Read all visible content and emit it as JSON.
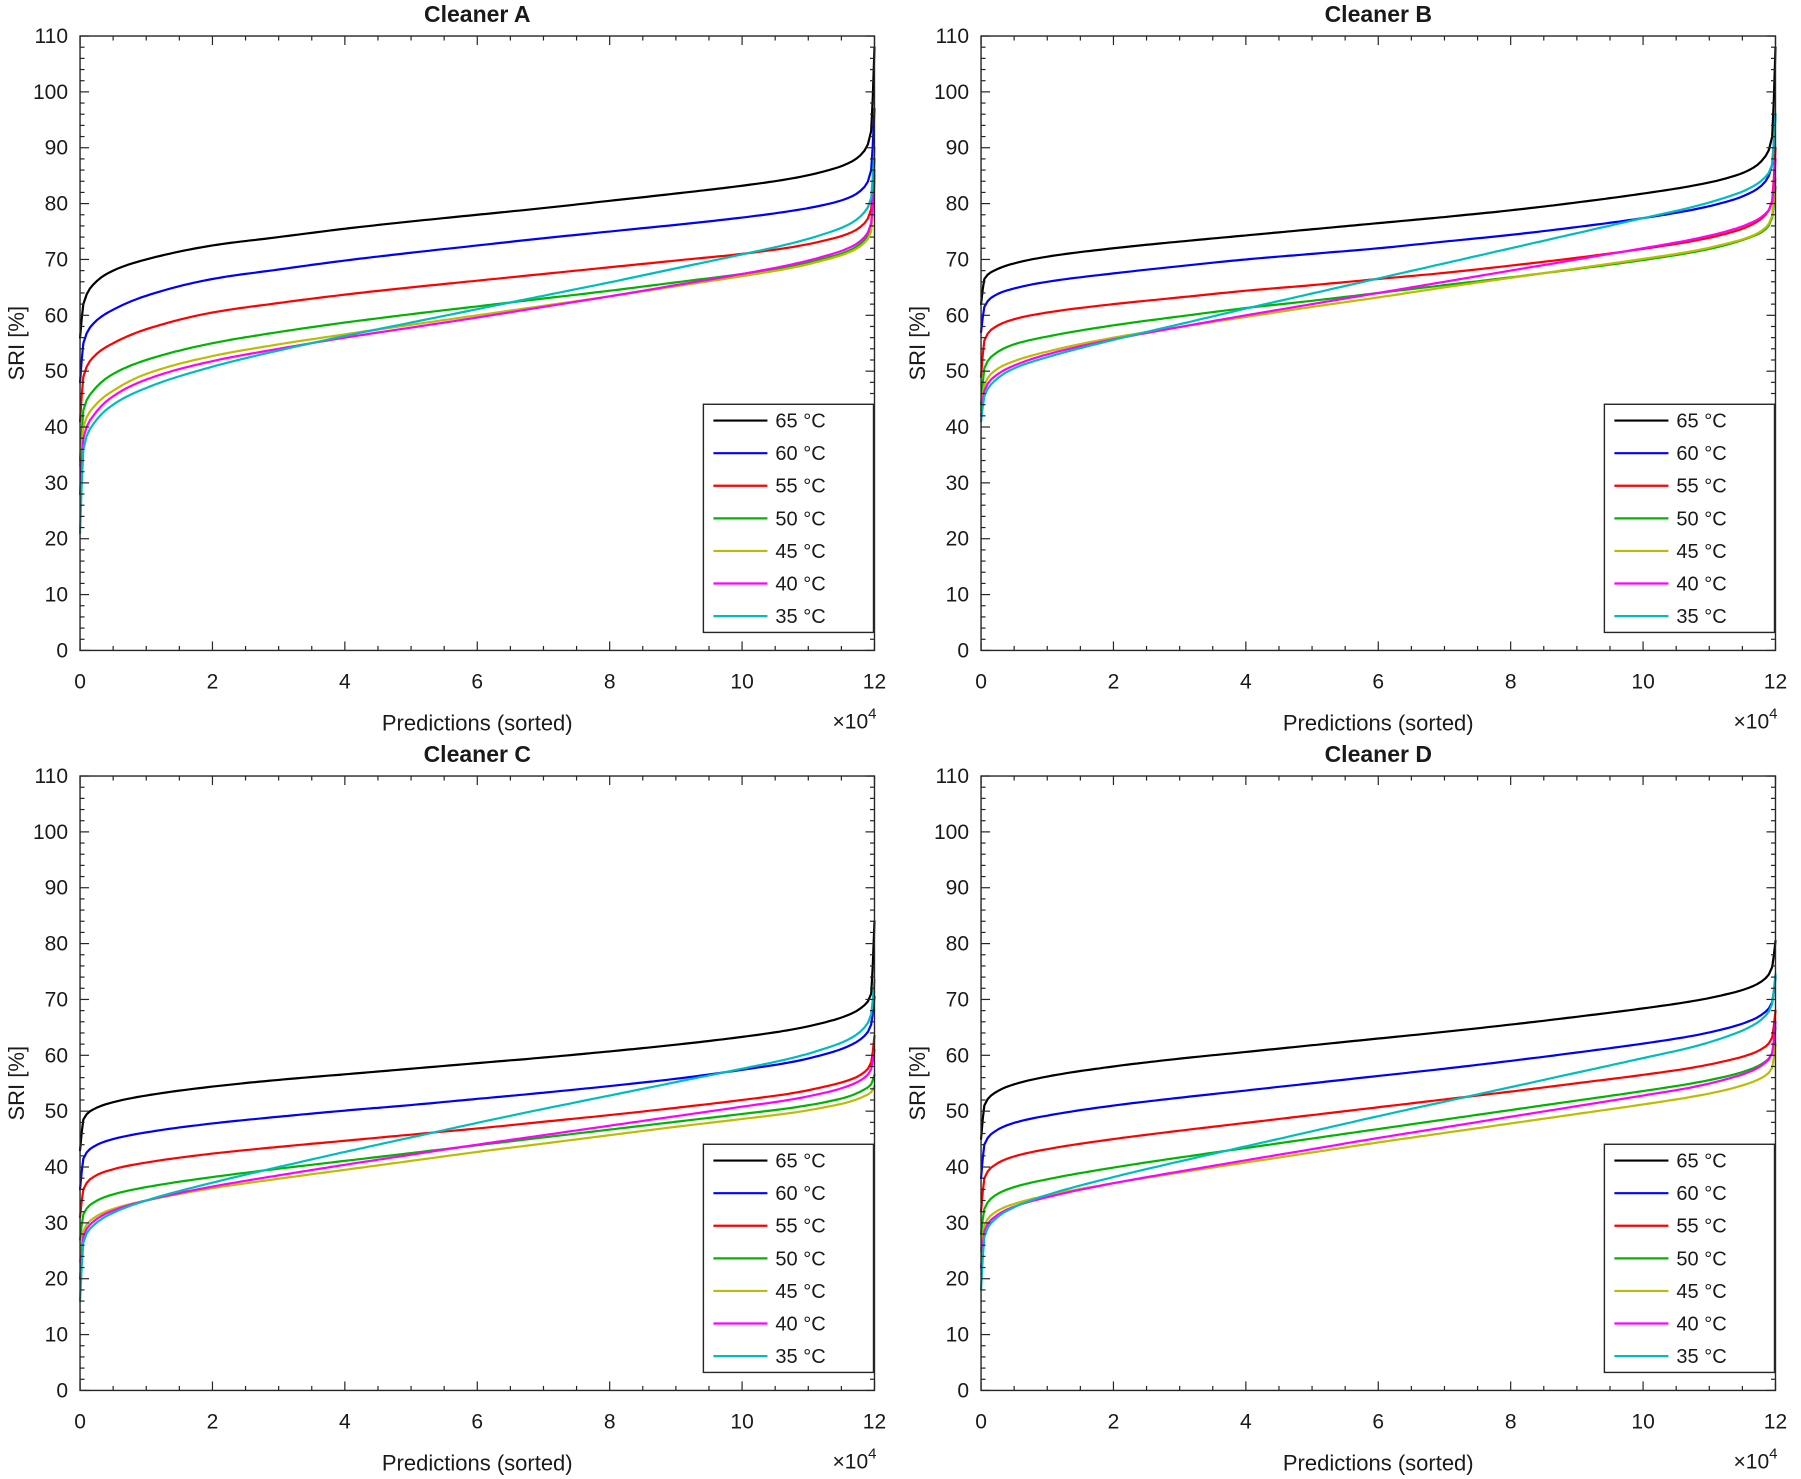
{
  "figure": {
    "background": "#ffffff",
    "axis_color": "#262626",
    "text_color": "#1a1a1a"
  },
  "chart_data": [
    {
      "type": "line",
      "title": "Cleaner A",
      "xlabel": "Predictions (sorted)",
      "ylabel": "SRI [%]",
      "x_exponent_label": "×10",
      "x_exponent_power": "4",
      "xlim": [
        0,
        12
      ],
      "ylim": [
        0,
        110
      ],
      "xticks": [
        0,
        2,
        4,
        6,
        8,
        10,
        12
      ],
      "yticks": [
        0,
        10,
        20,
        30,
        40,
        50,
        60,
        70,
        80,
        90,
        100,
        110
      ],
      "x_minor_step": 0.5,
      "y_minor_step": 2,
      "grid": false,
      "legend_position": "bottom-right",
      "x": [
        0,
        0.05,
        0.2,
        0.5,
        1,
        2,
        3,
        4,
        5,
        6,
        7,
        8,
        9,
        10,
        10.75,
        11.25,
        11.6,
        11.85,
        11.95,
        12
      ],
      "series": [
        {
          "name": "65 °C",
          "color": "#000000",
          "values": [
            56,
            62,
            65.5,
            68,
            70,
            72.5,
            74,
            75.5,
            76.8,
            78,
            79.2,
            80.5,
            81.8,
            83.2,
            84.5,
            85.8,
            87.2,
            89.5,
            93,
            108
          ]
        },
        {
          "name": "60 °C",
          "color": "#0000ff",
          "values": [
            48,
            55,
            58.5,
            61,
            63.5,
            66.5,
            68.2,
            69.8,
            71.2,
            72.5,
            73.8,
            75,
            76.2,
            77.5,
            78.7,
            79.8,
            81,
            83,
            86,
            97
          ]
        },
        {
          "name": "55 °C",
          "color": "#ff0000",
          "values": [
            41,
            49,
            52.5,
            55,
            57.5,
            60.5,
            62.2,
            63.7,
            65,
            66.2,
            67.4,
            68.6,
            69.8,
            71,
            72.2,
            73.4,
            74.6,
            76.5,
            79,
            88
          ]
        },
        {
          "name": "50 °C",
          "color": "#00b400",
          "values": [
            34,
            43,
            46.5,
            49.5,
            52,
            55,
            57,
            58.7,
            60.2,
            61.6,
            63,
            64.4,
            65.9,
            67.4,
            68.8,
            70.2,
            71.5,
            73.5,
            76,
            86
          ]
        },
        {
          "name": "45 °C",
          "color": "#bdbd00",
          "values": [
            33,
            40,
            43.5,
            46.5,
            49.5,
            52.7,
            54.8,
            56.6,
            58.3,
            60,
            61.7,
            63.4,
            65.2,
            67,
            68.5,
            69.9,
            71.2,
            73,
            75,
            84
          ]
        },
        {
          "name": "40 °C",
          "color": "#ff00ff",
          "values": [
            28,
            38,
            42,
            45.5,
            48.5,
            51.8,
            54,
            56,
            57.8,
            59.6,
            61.5,
            63.4,
            65.4,
            67.4,
            69.1,
            70.6,
            72,
            74,
            76.5,
            85
          ]
        },
        {
          "name": "35 °C",
          "color": "#00bdbd",
          "values": [
            21,
            36,
            40.5,
            44,
            47,
            50.8,
            53.7,
            56.3,
            58.7,
            61.1,
            63.5,
            65.9,
            68.4,
            70.9,
            72.9,
            74.6,
            76.2,
            78.5,
            81,
            90
          ]
        }
      ]
    },
    {
      "type": "line",
      "title": "Cleaner B",
      "xlabel": "Predictions (sorted)",
      "ylabel": "SRI [%]",
      "x_exponent_label": "×10",
      "x_exponent_power": "4",
      "xlim": [
        0,
        12
      ],
      "ylim": [
        0,
        110
      ],
      "xticks": [
        0,
        2,
        4,
        6,
        8,
        10,
        12
      ],
      "yticks": [
        0,
        10,
        20,
        30,
        40,
        50,
        60,
        70,
        80,
        90,
        100,
        110
      ],
      "x_minor_step": 0.5,
      "y_minor_step": 2,
      "grid": false,
      "legend_position": "bottom-right",
      "x": [
        0,
        0.05,
        0.2,
        0.5,
        1,
        2,
        3,
        4,
        5,
        6,
        7,
        8,
        9,
        10,
        10.75,
        11.25,
        11.6,
        11.85,
        11.95,
        12
      ],
      "series": [
        {
          "name": "65 °C",
          "color": "#000000",
          "values": [
            62,
            66.5,
            68,
            69.3,
            70.5,
            72,
            73.2,
            74.3,
            75.4,
            76.5,
            77.6,
            78.8,
            80.2,
            81.8,
            83.2,
            84.5,
            86,
            88.5,
            92,
            108
          ]
        },
        {
          "name": "60 °C",
          "color": "#0000ff",
          "values": [
            57,
            61.5,
            63.5,
            64.8,
            66,
            67.5,
            68.8,
            70,
            71,
            72,
            73.2,
            74.4,
            75.8,
            77.4,
            78.9,
            80.3,
            81.8,
            84,
            87,
            96
          ]
        },
        {
          "name": "55 °C",
          "color": "#ff0000",
          "values": [
            49,
            55.5,
            57.8,
            59.3,
            60.5,
            62,
            63.2,
            64.4,
            65.4,
            66.5,
            67.6,
            68.9,
            70.3,
            71.9,
            73.3,
            74.6,
            76,
            78,
            80.5,
            90
          ]
        },
        {
          "name": "50 °C",
          "color": "#00b400",
          "values": [
            44,
            50.5,
            53,
            54.8,
            56.2,
            58.2,
            59.8,
            61.3,
            62.6,
            64,
            65.4,
            66.8,
            68.3,
            69.9,
            71.3,
            72.6,
            73.9,
            75.4,
            77.5,
            83
          ]
        },
        {
          "name": "45 °C",
          "color": "#bdbd00",
          "values": [
            43,
            47.5,
            50,
            51.8,
            53.5,
            56,
            57.9,
            59.7,
            61.5,
            63.2,
            65,
            66.7,
            68.4,
            70.1,
            71.5,
            72.8,
            74,
            75.7,
            77.8,
            84.5
          ]
        },
        {
          "name": "40 °C",
          "color": "#ff00ff",
          "values": [
            42,
            46.5,
            49,
            51,
            53,
            55.7,
            57.9,
            60,
            62,
            64,
            66,
            68,
            70,
            72,
            73.6,
            75,
            76.4,
            78.2,
            80.2,
            88
          ]
        },
        {
          "name": "35 °C",
          "color": "#00bdbd",
          "values": [
            41,
            45.5,
            48.2,
            50.5,
            52.5,
            55.6,
            58.4,
            61.2,
            63.9,
            66.6,
            69.3,
            72,
            74.7,
            77.4,
            79.4,
            81.1,
            82.7,
            84.8,
            87,
            96
          ]
        }
      ]
    },
    {
      "type": "line",
      "title": "Cleaner C",
      "xlabel": "Predictions (sorted)",
      "ylabel": "SRI [%]",
      "x_exponent_label": "×10",
      "x_exponent_power": "4",
      "xlim": [
        0,
        12
      ],
      "ylim": [
        0,
        110
      ],
      "xticks": [
        0,
        2,
        4,
        6,
        8,
        10,
        12
      ],
      "yticks": [
        0,
        10,
        20,
        30,
        40,
        50,
        60,
        70,
        80,
        90,
        100,
        110
      ],
      "x_minor_step": 0.5,
      "y_minor_step": 2,
      "grid": false,
      "legend_position": "bottom-right",
      "x": [
        0,
        0.05,
        0.2,
        0.5,
        1,
        2,
        3,
        4,
        5,
        6,
        7,
        8,
        9,
        10,
        10.75,
        11.25,
        11.6,
        11.85,
        11.95,
        12
      ],
      "series": [
        {
          "name": "65 °C",
          "color": "#000000",
          "values": [
            43,
            48.5,
            50.3,
            51.6,
            52.8,
            54.4,
            55.6,
            56.6,
            57.6,
            58.6,
            59.6,
            60.7,
            61.9,
            63.3,
            64.6,
            65.9,
            67.2,
            69,
            71,
            84
          ]
        },
        {
          "name": "60 °C",
          "color": "#0000ff",
          "values": [
            36,
            41.5,
            43.6,
            45,
            46.2,
            47.8,
            49,
            50.1,
            51.1,
            52.2,
            53.3,
            54.5,
            55.8,
            57.4,
            58.8,
            60.2,
            61.6,
            63.5,
            65.5,
            70.5
          ]
        },
        {
          "name": "55 °C",
          "color": "#ff0000",
          "values": [
            31,
            36,
            38.2,
            39.6,
            40.8,
            42.4,
            43.6,
            44.7,
            45.8,
            46.9,
            48.1,
            49.3,
            50.6,
            52,
            53.2,
            54.4,
            55.5,
            57,
            58.7,
            63.5
          ]
        },
        {
          "name": "50 °C",
          "color": "#00b400",
          "values": [
            27,
            31.5,
            33.6,
            35.1,
            36.4,
            38.2,
            39.7,
            41.1,
            42.5,
            43.9,
            45.3,
            46.7,
            48.1,
            49.5,
            50.6,
            51.6,
            52.6,
            53.9,
            54.8,
            56.5
          ]
        },
        {
          "name": "45 °C",
          "color": "#bdbd00",
          "values": [
            23,
            28.5,
            30.8,
            32.5,
            34,
            36.2,
            37.9,
            39.5,
            41.1,
            42.7,
            44.2,
            45.7,
            47.2,
            48.6,
            49.7,
            50.7,
            51.6,
            52.7,
            53.4,
            54.5
          ]
        },
        {
          "name": "40 °C",
          "color": "#ff00ff",
          "values": [
            20,
            27.5,
            30.2,
            32.2,
            34,
            36.5,
            38.5,
            40.4,
            42.2,
            44,
            45.7,
            47.4,
            49.1,
            50.8,
            52.1,
            53.3,
            54.5,
            56,
            57.5,
            61
          ]
        },
        {
          "name": "35 °C",
          "color": "#00bdbd",
          "values": [
            16,
            26.5,
            29.5,
            31.8,
            34,
            37.2,
            40,
            42.7,
            45.3,
            47.9,
            50.4,
            52.8,
            55.2,
            57.6,
            59.5,
            61.2,
            62.8,
            65,
            67.3,
            73.5
          ]
        }
      ]
    },
    {
      "type": "line",
      "title": "Cleaner D",
      "xlabel": "Predictions (sorted)",
      "ylabel": "SRI [%]",
      "x_exponent_label": "×10",
      "x_exponent_power": "4",
      "xlim": [
        0,
        12
      ],
      "ylim": [
        0,
        110
      ],
      "xticks": [
        0,
        2,
        4,
        6,
        8,
        10,
        12
      ],
      "yticks": [
        0,
        10,
        20,
        30,
        40,
        50,
        60,
        70,
        80,
        90,
        100,
        110
      ],
      "x_minor_step": 0.5,
      "y_minor_step": 2,
      "grid": false,
      "legend_position": "bottom-right",
      "x": [
        0,
        0.05,
        0.2,
        0.5,
        1,
        2,
        3,
        4,
        5,
        6,
        7,
        8,
        9,
        10,
        10.75,
        11.25,
        11.6,
        11.85,
        11.95,
        12
      ],
      "series": [
        {
          "name": "65 °C",
          "color": "#000000",
          "values": [
            45,
            51,
            53.2,
            54.8,
            56.2,
            58,
            59.4,
            60.6,
            61.8,
            63,
            64.2,
            65.5,
            66.9,
            68.4,
            69.7,
            70.9,
            72.1,
            73.8,
            75.8,
            80.5
          ]
        },
        {
          "name": "60 °C",
          "color": "#0000ff",
          "values": [
            38,
            44,
            46.3,
            47.9,
            49.2,
            51,
            52.4,
            53.7,
            55,
            56.3,
            57.6,
            59,
            60.5,
            62.1,
            63.5,
            64.8,
            66.1,
            67.8,
            69.5,
            74
          ]
        },
        {
          "name": "55 °C",
          "color": "#ff0000",
          "values": [
            32,
            38,
            40.3,
            41.9,
            43.2,
            45,
            46.5,
            47.9,
            49.3,
            50.7,
            52.1,
            53.5,
            55,
            56.5,
            57.8,
            59,
            60.1,
            61.6,
            63.2,
            68
          ]
        },
        {
          "name": "50 °C",
          "color": "#00b400",
          "values": [
            28,
            32.5,
            34.8,
            36.4,
            37.8,
            39.9,
            41.7,
            43.4,
            45.1,
            46.8,
            48.5,
            50.2,
            51.9,
            53.6,
            55,
            56.2,
            57.4,
            58.9,
            60.4,
            65
          ]
        },
        {
          "name": "45 °C",
          "color": "#bdbd00",
          "values": [
            25,
            29.5,
            31.8,
            33.4,
            34.9,
            37.1,
            39,
            40.8,
            42.6,
            44.4,
            46.1,
            47.8,
            49.5,
            51.2,
            52.6,
            53.8,
            55,
            56.4,
            57.8,
            62
          ]
        },
        {
          "name": "40 °C",
          "color": "#ff00ff",
          "values": [
            22,
            28.5,
            31,
            32.9,
            34.6,
            37.1,
            39.2,
            41.2,
            43.2,
            45.2,
            47.1,
            49,
            50.9,
            52.8,
            54.3,
            55.7,
            57,
            58.7,
            60.4,
            66
          ]
        },
        {
          "name": "35 °C",
          "color": "#00bdbd",
          "values": [
            18,
            27.5,
            30.5,
            32.8,
            35,
            38.2,
            41,
            43.7,
            46.4,
            49.1,
            51.7,
            54.3,
            56.9,
            59.5,
            61.5,
            63.3,
            65,
            67.1,
            69.2,
            74.5
          ]
        }
      ]
    }
  ]
}
